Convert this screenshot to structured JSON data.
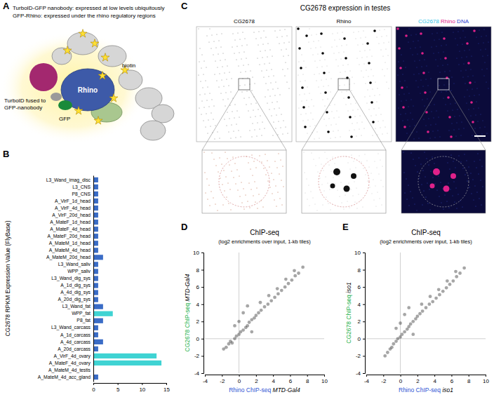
{
  "panel_labels": [
    "A",
    "B",
    "C",
    "D",
    "E"
  ],
  "panel_a": {
    "notes": [
      "TurboID-GFP nanobody: expressed at low levels ubiquitously",
      "GFP-Rhino: expressed under the rhino regulatory regions"
    ],
    "biotin": "biotin",
    "turboid": [
      "TurboID fused to",
      "GFP-nanobody"
    ],
    "gfp": "GFP",
    "rhino": "Rhino"
  },
  "panel_c": {
    "title": "CG2678 expression in testes",
    "channels": [
      "CG2678",
      "Rhino"
    ],
    "merge": [
      "CG2678",
      "Rhino",
      "DNA"
    ]
  },
  "chart_data": [
    {
      "type": "bar",
      "orientation": "horizontal",
      "title": "CG2678 RPKM Expression Value (FlyBase)",
      "categories": [
        "L3_Wand_imag_disc",
        "L3_CNS",
        "P8_CNS",
        "A_VirF_1d_head",
        "A_VirF_4d_head",
        "A_VirF_20d_head",
        "A_MateF_1d_head",
        "A_MateF_4d_head",
        "A_MateF_20d_head",
        "A_MateM_1d_head",
        "A_MateM_4d_head",
        "A_MateM_20d_head",
        "L3_Wand_saliv",
        "WPP_saliv",
        "L3_Wand_dig_sys",
        "A_1d_dig_sys",
        "A_4d_dig_sys",
        "A_20d_dig_sys",
        "L3_Wand_fat",
        "WPP_fat",
        "P8_fat",
        "L3_Wand_carcass",
        "A_1d_carcass",
        "A_4d_carcass",
        "A_20d_carcass",
        "A_VirF_4d_ovary",
        "A_MateF_4d_ovary",
        "A_MateM_4d_testis",
        "A_MateM_4d_acc_gland"
      ],
      "values": [
        1,
        1,
        1,
        1,
        1,
        1,
        1,
        1,
        1,
        1,
        1,
        2,
        1,
        1,
        1,
        1,
        1,
        1,
        2,
        4,
        2,
        1,
        1,
        2,
        1,
        13,
        14,
        0,
        1
      ],
      "colors": [
        "#3a6cc6",
        "#3a6cc6",
        "#3a6cc6",
        "#3a6cc6",
        "#3a6cc6",
        "#3a6cc6",
        "#3a6cc6",
        "#3a6cc6",
        "#3a6cc6",
        "#3a6cc6",
        "#3a6cc6",
        "#3a6cc6",
        "#3a6cc6",
        "#3a6cc6",
        "#3a6cc6",
        "#3a6cc6",
        "#3a6cc6",
        "#3a6cc6",
        "#3a6cc6",
        "#3fd3d3",
        "#3a6cc6",
        "#3a6cc6",
        "#3a6cc6",
        "#3a6cc6",
        "#3a6cc6",
        "#3fd3d3",
        "#3fd3d3",
        "#3a6cc6",
        "#3a6cc6"
      ],
      "xlim": [
        0,
        15
      ],
      "xticks": [
        0,
        5,
        10,
        15
      ]
    },
    {
      "type": "scatter",
      "title": "ChIP-seq",
      "subtitle": "(log2 enrichments over input, 1-kb tiles)",
      "xlabel": [
        "Rhino ChIP-seq",
        "MTD-Gal4"
      ],
      "ylabel": [
        "CG2678 ChIP-seq",
        "MTD-Gal4"
      ],
      "color": "#000000",
      "x": [
        -1.8,
        -1.5,
        -1.2,
        -1,
        -0.8,
        -0.5,
        -0.3,
        0,
        0.2,
        0.5,
        0.8,
        1,
        1.2,
        1.5,
        1.8,
        2,
        2.3,
        2.6,
        3,
        3.4,
        3.8,
        4.2,
        4.6,
        5,
        5.4,
        5.8,
        6.2,
        6.6,
        7,
        7.5,
        0,
        0.5,
        1,
        -0.5,
        1.5,
        2.5,
        3.5,
        4.5,
        5.5,
        6.5
      ],
      "values": [
        -1.2,
        -1,
        -0.6,
        -0.3,
        -0.5,
        0,
        0.3,
        0.5,
        0.8,
        1,
        1.3,
        1.5,
        1.9,
        2.2,
        2.4,
        2.7,
        3,
        3.3,
        3.7,
        4,
        4.4,
        4.8,
        5.2,
        5.6,
        6,
        6.4,
        6.8,
        7.3,
        7.6,
        8.3,
        2,
        3,
        3.8,
        1.5,
        0.8,
        4.2,
        5,
        5.8,
        6.9,
        7.9
      ],
      "xlim": [
        -4,
        10
      ],
      "xticks": [
        -4,
        -2,
        0,
        2,
        4,
        6,
        8,
        10
      ],
      "ylim": [
        -4,
        10
      ],
      "yticks": [
        -4,
        -2,
        0,
        2,
        4,
        6,
        8,
        10
      ]
    },
    {
      "type": "scatter",
      "title": "ChIP-seq",
      "subtitle": "(log2 enrichments over input, 1-kb tiles)",
      "xlabel": [
        "Rhino ChIP-seq",
        "iso1"
      ],
      "ylabel": [
        "CG2678 ChIP-seq",
        "iso1"
      ],
      "color": "#000000",
      "x": [
        -1.8,
        -1.5,
        -1.2,
        -1,
        -0.8,
        -0.5,
        -0.3,
        0,
        0.2,
        0.5,
        0.8,
        1,
        1.2,
        1.5,
        1.8,
        2,
        2.3,
        2.6,
        3,
        3.4,
        3.8,
        4.2,
        4.6,
        5,
        5.4,
        5.8,
        6.2,
        6.6,
        7,
        7.5,
        0,
        0.5,
        1,
        -0.5,
        1.5,
        2.5,
        3.5,
        4.5,
        5.5,
        6.5
      ],
      "values": [
        -2,
        -1.6,
        -1.2,
        -1,
        -0.6,
        -0.3,
        0,
        0.2,
        0.5,
        0.8,
        1.1,
        1.4,
        1.7,
        2,
        2.3,
        2.6,
        2.9,
        3.2,
        3.6,
        4,
        4.3,
        4.7,
        5.1,
        5.5,
        5.9,
        6.3,
        6.7,
        7.2,
        7.6,
        8.2,
        1.8,
        2.8,
        3.6,
        1.2,
        0.5,
        4,
        4.9,
        5.7,
        6.7,
        7.8
      ],
      "xlim": [
        -4,
        10
      ],
      "xticks": [
        -4,
        -2,
        0,
        2,
        4,
        6,
        8,
        10
      ],
      "ylim": [
        -4,
        10
      ],
      "yticks": [
        -4,
        -2,
        0,
        2,
        4,
        6,
        8,
        10
      ]
    }
  ]
}
